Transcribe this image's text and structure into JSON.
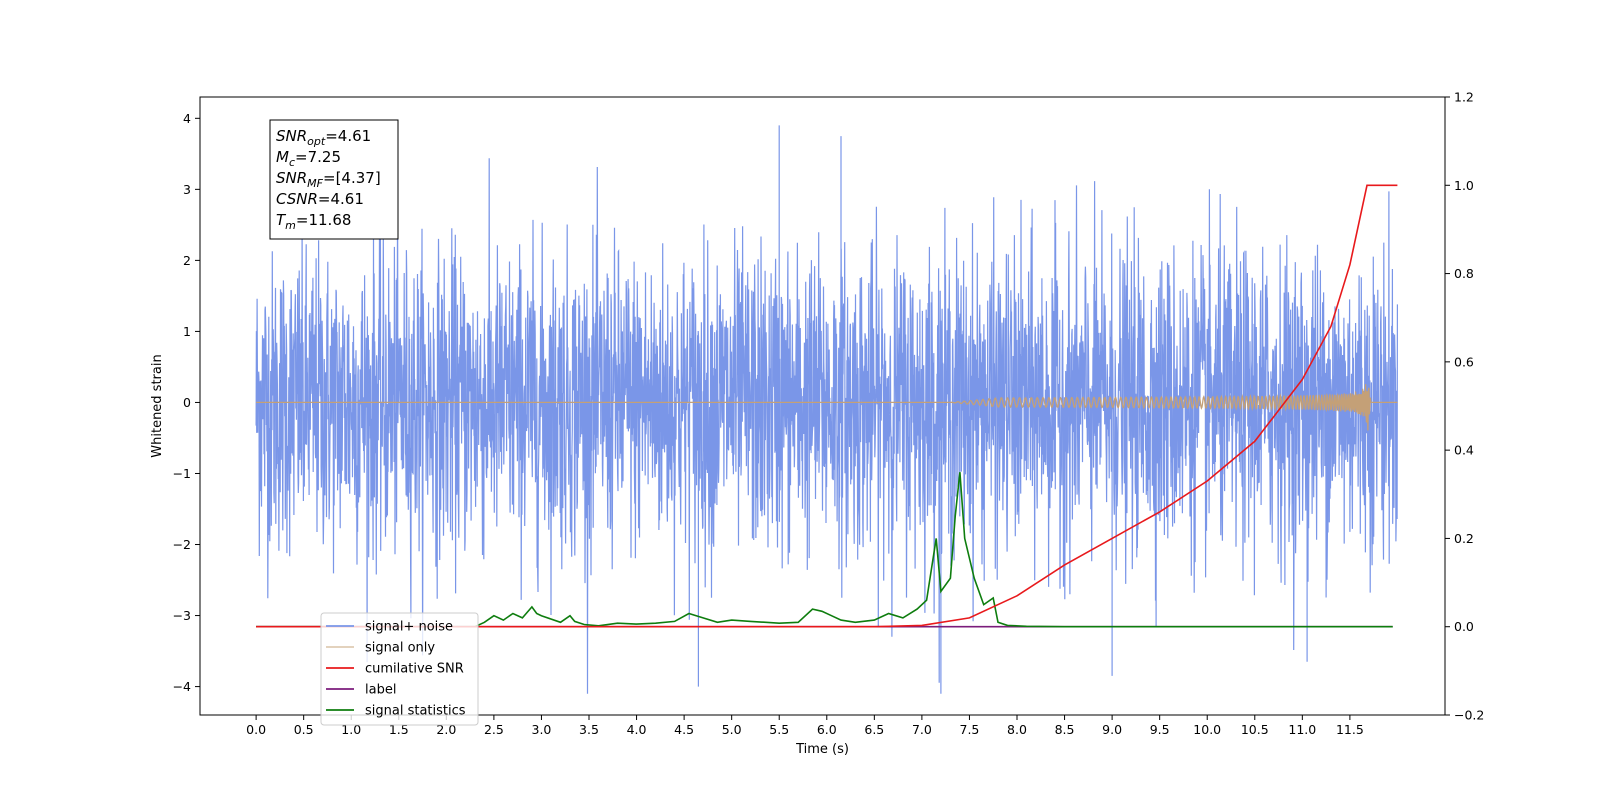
{
  "chart_data": {
    "type": "line",
    "title": "",
    "xlabel": "Time (s)",
    "ylabel": "Whitened strain",
    "xlim": [
      -0.59,
      12.5
    ],
    "ylim": [
      -4.4,
      4.3
    ],
    "y2lim": [
      -0.2,
      1.2
    ],
    "x_ticks": [
      "0.0",
      "0.5",
      "1.0",
      "1.5",
      "2.0",
      "2.5",
      "3.0",
      "3.5",
      "4.0",
      "4.5",
      "5.0",
      "5.5",
      "6.0",
      "6.5",
      "7.0",
      "7.5",
      "8.0",
      "8.5",
      "9.0",
      "9.5",
      "10.0",
      "10.5",
      "11.0",
      "11.5"
    ],
    "y_ticks": [
      "4",
      "3",
      "2",
      "1",
      "0",
      "−1",
      "−2",
      "−3",
      "−4"
    ],
    "y2_ticks": [
      "1.2",
      "1.0",
      "0.8",
      "0.6",
      "0.4",
      "0.2",
      "0.0",
      "−0.2"
    ],
    "grid": false,
    "legend_position": "lower-left",
    "stats_box": {
      "lines": [
        {
          "base": "SNR",
          "sub": "opt",
          "value": "=4.61"
        },
        {
          "base": "M",
          "sub": "c",
          "value": "=7.25"
        },
        {
          "base": "SNR",
          "sub": "MF",
          "value": "=[4.37]"
        },
        {
          "base": "CSNR",
          "sub": "",
          "value": "=4.61"
        },
        {
          "base": "T",
          "sub": "m",
          "value": "=11.68"
        }
      ]
    },
    "series": [
      {
        "name": "signal+ noise",
        "color": "#7a96e8",
        "axis": "left",
        "x_range": [
          0.0,
          12.0
        ],
        "envelope": {
          "min": -4.1,
          "max": 3.9
        },
        "notable_peaks": [
          {
            "x": 5.5,
            "y": 3.9
          },
          {
            "x": 6.15,
            "y": 3.75
          },
          {
            "x": 4.65,
            "y": -4.0
          },
          {
            "x": 7.2,
            "y": -4.1
          },
          {
            "x": 9.0,
            "y": -3.85
          },
          {
            "x": 11.05,
            "y": -3.65
          }
        ]
      },
      {
        "name": "signal only",
        "color": "#c4a077",
        "axis": "left",
        "x_range": [
          0.0,
          12.0
        ],
        "chirp_start": 7.3,
        "merger_time": 11.68,
        "peak_amplitude": 0.55
      },
      {
        "name": "cumilative SNR",
        "color": "#e8191c",
        "axis": "right",
        "x": [
          0.0,
          6.5,
          7.0,
          7.5,
          8.0,
          8.5,
          9.0,
          9.5,
          10.0,
          10.5,
          11.0,
          11.3,
          11.5,
          11.6,
          11.68,
          12.0
        ],
        "y": [
          0.0,
          0.0,
          0.003,
          0.02,
          0.07,
          0.14,
          0.2,
          0.26,
          0.33,
          0.42,
          0.56,
          0.68,
          0.82,
          0.92,
          1.0,
          1.0
        ]
      },
      {
        "name": "label",
        "color": "#7b1c7b",
        "axis": "right",
        "x": [
          0.0,
          11.95
        ],
        "y": [
          0.0,
          0.0
        ]
      },
      {
        "name": "signal statistics",
        "color": "#0e7d0e",
        "axis": "right",
        "x": [
          0.0,
          2.3,
          2.4,
          2.5,
          2.6,
          2.7,
          2.8,
          2.9,
          2.95,
          3.0,
          3.2,
          3.3,
          3.35,
          3.45,
          3.6,
          3.8,
          4.0,
          4.2,
          4.4,
          4.55,
          4.7,
          4.85,
          5.0,
          5.2,
          5.5,
          5.7,
          5.85,
          5.95,
          6.05,
          6.15,
          6.3,
          6.5,
          6.65,
          6.8,
          6.95,
          7.05,
          7.15,
          7.2,
          7.3,
          7.35,
          7.4,
          7.45,
          7.55,
          7.65,
          7.75,
          7.8,
          7.9,
          8.1,
          8.5,
          9.0,
          11.95
        ],
        "y": [
          0.0,
          0.0,
          0.01,
          0.025,
          0.015,
          0.03,
          0.02,
          0.045,
          0.03,
          0.025,
          0.01,
          0.025,
          0.012,
          0.005,
          0.002,
          0.008,
          0.006,
          0.008,
          0.012,
          0.03,
          0.02,
          0.01,
          0.015,
          0.012,
          0.008,
          0.01,
          0.04,
          0.035,
          0.025,
          0.015,
          0.01,
          0.015,
          0.03,
          0.02,
          0.04,
          0.06,
          0.2,
          0.08,
          0.11,
          0.25,
          0.35,
          0.2,
          0.11,
          0.05,
          0.065,
          0.01,
          0.003,
          0.001,
          0.0,
          0.0,
          0.0
        ]
      }
    ]
  }
}
